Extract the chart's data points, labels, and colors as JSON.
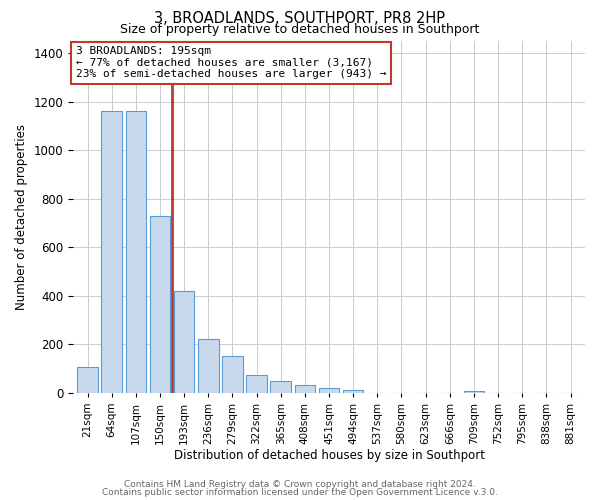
{
  "title": "3, BROADLANDS, SOUTHPORT, PR8 2HP",
  "subtitle": "Size of property relative to detached houses in Southport",
  "xlabel": "Distribution of detached houses by size in Southport",
  "ylabel": "Number of detached properties",
  "bar_color": "#c8d9ee",
  "bar_edge_color": "#5b9bd5",
  "highlight_bar_edge_color": "#c0392b",
  "categories": [
    "21sqm",
    "64sqm",
    "107sqm",
    "150sqm",
    "193sqm",
    "236sqm",
    "279sqm",
    "322sqm",
    "365sqm",
    "408sqm",
    "451sqm",
    "494sqm",
    "537sqm",
    "580sqm",
    "623sqm",
    "666sqm",
    "709sqm",
    "752sqm",
    "795sqm",
    "838sqm",
    "881sqm"
  ],
  "values": [
    107,
    1160,
    1160,
    730,
    420,
    220,
    150,
    73,
    50,
    32,
    18,
    12,
    0,
    0,
    0,
    0,
    8,
    0,
    0,
    0,
    0
  ],
  "ylim": [
    0,
    1450
  ],
  "yticks": [
    0,
    200,
    400,
    600,
    800,
    1000,
    1200,
    1400
  ],
  "annotation_title": "3 BROADLANDS: 195sqm",
  "annotation_line1": "← 77% of detached houses are smaller (3,167)",
  "annotation_line2": "23% of semi-detached houses are larger (943) →",
  "footer1": "Contains HM Land Registry data © Crown copyright and database right 2024.",
  "footer2": "Contains public sector information licensed under the Open Government Licence v.3.0.",
  "vline_x_index": 3.5,
  "background_color": "#ffffff",
  "grid_color": "#cccccc"
}
